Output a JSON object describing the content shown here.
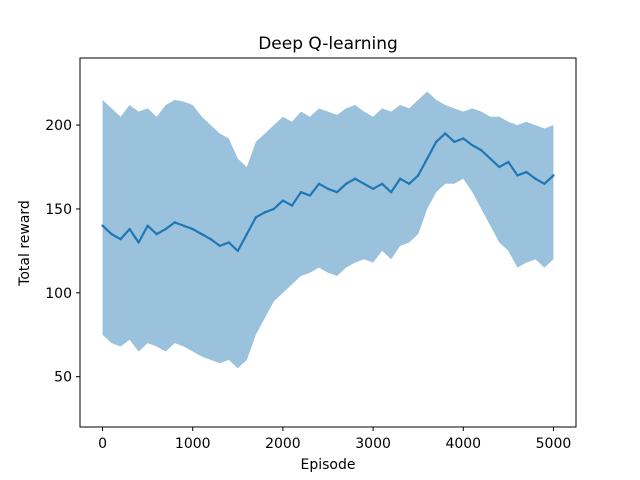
{
  "chart_data": {
    "type": "line",
    "title": "Deep Q-learning",
    "xlabel": "Episode",
    "ylabel": "Total reward",
    "xlim": [
      -250,
      5250
    ],
    "ylim": [
      20,
      240
    ],
    "xticks": [
      0,
      1000,
      2000,
      3000,
      4000,
      5000
    ],
    "yticks": [
      50,
      100,
      150,
      200
    ],
    "grid": false,
    "legend": "none",
    "series": [
      {
        "color": "#1f77b4",
        "band_color": "#1f77b4",
        "x": [
          0,
          100,
          200,
          300,
          400,
          500,
          600,
          700,
          800,
          900,
          1000,
          1100,
          1200,
          1300,
          1400,
          1500,
          1600,
          1700,
          1800,
          1900,
          2000,
          2100,
          2200,
          2300,
          2400,
          2500,
          2600,
          2700,
          2800,
          2900,
          3000,
          3100,
          3200,
          3300,
          3400,
          3500,
          3600,
          3700,
          3800,
          3900,
          4000,
          4100,
          4200,
          4300,
          4400,
          4500,
          4600,
          4700,
          4800,
          4900,
          5000
        ],
        "y": [
          140,
          135,
          132,
          138,
          130,
          140,
          135,
          138,
          142,
          140,
          138,
          135,
          132,
          128,
          130,
          125,
          135,
          145,
          148,
          150,
          155,
          152,
          160,
          158,
          165,
          162,
          160,
          165,
          168,
          165,
          162,
          165,
          160,
          168,
          165,
          170,
          180,
          190,
          195,
          190,
          192,
          188,
          185,
          180,
          175,
          178,
          170,
          172,
          168,
          165,
          170
        ],
        "lower": [
          75,
          70,
          68,
          72,
          65,
          70,
          68,
          65,
          70,
          68,
          65,
          62,
          60,
          58,
          60,
          55,
          60,
          75,
          85,
          95,
          100,
          105,
          110,
          112,
          115,
          112,
          110,
          115,
          118,
          120,
          118,
          125,
          120,
          128,
          130,
          135,
          150,
          160,
          165,
          165,
          168,
          160,
          150,
          140,
          130,
          125,
          115,
          118,
          120,
          115,
          120
        ],
        "upper": [
          215,
          210,
          205,
          212,
          208,
          210,
          205,
          212,
          215,
          214,
          212,
          205,
          200,
          195,
          192,
          180,
          175,
          190,
          195,
          200,
          205,
          202,
          208,
          205,
          210,
          208,
          206,
          210,
          212,
          208,
          205,
          210,
          208,
          212,
          210,
          215,
          220,
          215,
          212,
          210,
          208,
          210,
          208,
          205,
          205,
          202,
          200,
          202,
          200,
          198,
          200
        ]
      }
    ]
  }
}
